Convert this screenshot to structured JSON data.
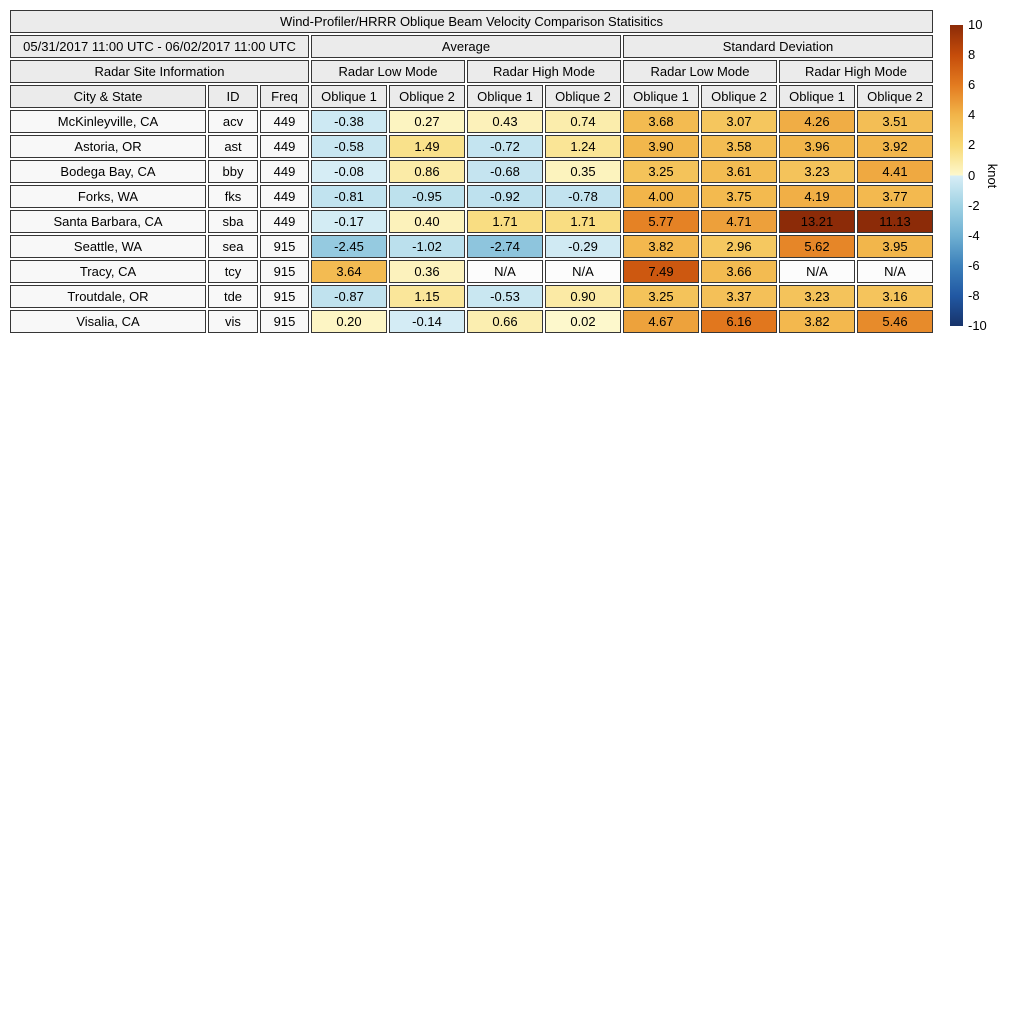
{
  "title": "Wind-Profiler/HRRR Oblique Beam Velocity Comparison Statisitics",
  "header": {
    "date_range": "05/31/2017 11:00 UTC - 06/02/2017 11:00 UTC",
    "group_average": "Average",
    "group_std": "Standard Deviation",
    "site_info": "Radar Site Information",
    "modes": [
      "Radar Low Mode",
      "Radar High Mode",
      "Radar Low Mode",
      "Radar High Mode"
    ],
    "col_city": "City & State",
    "col_id": "ID",
    "col_freq": "Freq",
    "oblique": [
      "Oblique 1",
      "Oblique 2",
      "Oblique 1",
      "Oblique 2",
      "Oblique 1",
      "Oblique 2",
      "Oblique 1",
      "Oblique 2"
    ]
  },
  "na_label": "N/A",
  "colors": {
    "header_bg": "#ebebeb",
    "site_bg": "#f8f8f8",
    "na_bg": "#fcfcfc",
    "border": "#363636",
    "stops_positive": [
      [
        0,
        "#fdf8cd"
      ],
      [
        2,
        "#f8d975"
      ],
      [
        4,
        "#f2b54a"
      ],
      [
        6,
        "#e37b20"
      ],
      [
        8,
        "#c54c0a"
      ],
      [
        10,
        "#8c2b08"
      ]
    ],
    "stops_negative": [
      [
        0,
        "#d8eef6"
      ],
      [
        2,
        "#a0d2e4"
      ],
      [
        4,
        "#6fb0d2"
      ],
      [
        6,
        "#3c80ba"
      ],
      [
        8,
        "#2158a3"
      ],
      [
        10,
        "#17336a"
      ]
    ]
  },
  "colorbar": {
    "label": "knot",
    "min": -10,
    "max": 10,
    "ticks": [
      10,
      8,
      6,
      4,
      2,
      0,
      -2,
      -4,
      -6,
      -8,
      -10
    ]
  },
  "chart_data": {
    "type": "heatmap",
    "title": "Wind-Profiler/HRRR Oblique Beam Velocity Comparison Statisitics",
    "period": "05/31/2017 11:00 UTC - 06/02/2017 11:00 UTC",
    "unit": "knot",
    "colorbar_range": [
      -10,
      10
    ],
    "columns": [
      {
        "group": "Average",
        "mode": "Radar Low Mode",
        "beam": "Oblique 1"
      },
      {
        "group": "Average",
        "mode": "Radar Low Mode",
        "beam": "Oblique 2"
      },
      {
        "group": "Average",
        "mode": "Radar High Mode",
        "beam": "Oblique 1"
      },
      {
        "group": "Average",
        "mode": "Radar High Mode",
        "beam": "Oblique 2"
      },
      {
        "group": "Standard Deviation",
        "mode": "Radar Low Mode",
        "beam": "Oblique 1"
      },
      {
        "group": "Standard Deviation",
        "mode": "Radar Low Mode",
        "beam": "Oblique 2"
      },
      {
        "group": "Standard Deviation",
        "mode": "Radar High Mode",
        "beam": "Oblique 1"
      },
      {
        "group": "Standard Deviation",
        "mode": "Radar High Mode",
        "beam": "Oblique 2"
      }
    ],
    "rows": [
      {
        "city": "McKinleyville, CA",
        "id": "acv",
        "freq": "449",
        "values": [
          -0.38,
          0.27,
          0.43,
          0.74,
          3.68,
          3.07,
          4.26,
          3.51
        ]
      },
      {
        "city": "Astoria, OR",
        "id": "ast",
        "freq": "449",
        "values": [
          -0.58,
          1.49,
          -0.72,
          1.24,
          3.9,
          3.58,
          3.96,
          3.92
        ]
      },
      {
        "city": "Bodega Bay, CA",
        "id": "bby",
        "freq": "449",
        "values": [
          -0.08,
          0.86,
          -0.68,
          0.35,
          3.25,
          3.61,
          3.23,
          4.41
        ]
      },
      {
        "city": "Forks, WA",
        "id": "fks",
        "freq": "449",
        "values": [
          -0.81,
          -0.95,
          -0.92,
          -0.78,
          4.0,
          3.75,
          4.19,
          3.77
        ]
      },
      {
        "city": "Santa Barbara, CA",
        "id": "sba",
        "freq": "449",
        "values": [
          -0.17,
          0.4,
          1.71,
          1.71,
          5.77,
          4.71,
          13.21,
          11.13
        ]
      },
      {
        "city": "Seattle, WA",
        "id": "sea",
        "freq": "915",
        "values": [
          -2.45,
          -1.02,
          -2.74,
          -0.29,
          3.82,
          2.96,
          5.62,
          3.95
        ]
      },
      {
        "city": "Tracy, CA",
        "id": "tcy",
        "freq": "915",
        "values": [
          3.64,
          0.36,
          null,
          null,
          7.49,
          3.66,
          null,
          null
        ]
      },
      {
        "city": "Troutdale, OR",
        "id": "tde",
        "freq": "915",
        "values": [
          -0.87,
          1.15,
          -0.53,
          0.9,
          3.25,
          3.37,
          3.23,
          3.16
        ]
      },
      {
        "city": "Visalia, CA",
        "id": "vis",
        "freq": "915",
        "values": [
          0.2,
          -0.14,
          0.66,
          0.02,
          4.67,
          6.16,
          3.82,
          5.46
        ]
      }
    ]
  }
}
